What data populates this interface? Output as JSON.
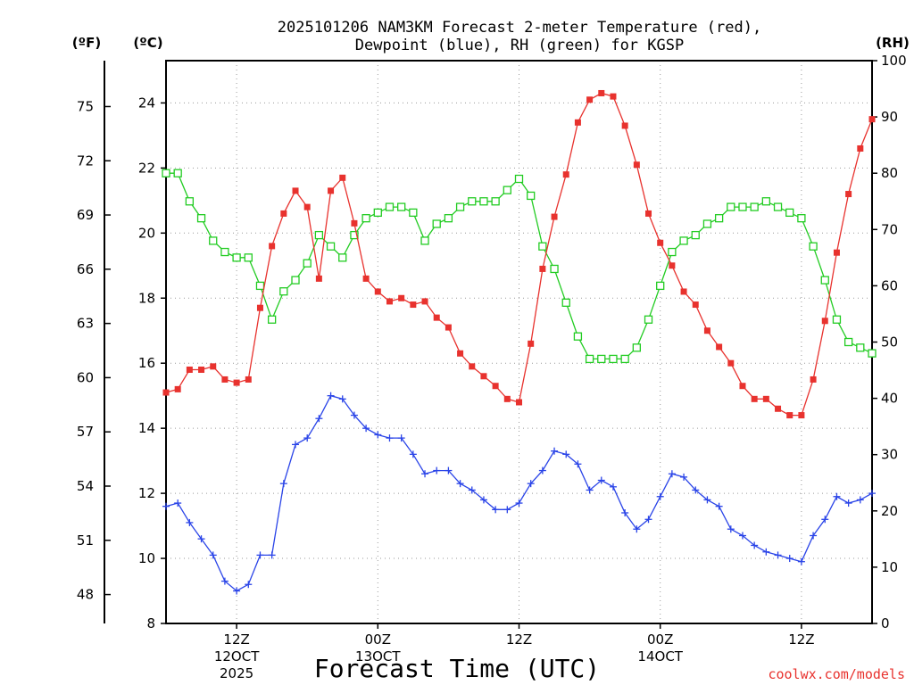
{
  "title": {
    "line1": "2025101206 NAM3KM Forecast 2-meter Temperature (red),",
    "line2": "Dewpoint (blue), RH (green) for KGSP"
  },
  "units": {
    "f": "(ºF)",
    "c": "(ºC)",
    "rh": "(RH)"
  },
  "xlabel": "Forecast Time (UTC)",
  "credit": "coolwx.com/models",
  "colors": {
    "temp": "#e8322e",
    "dew": "#2a44e8",
    "rh": "#22cc22",
    "credit": "#e8322e"
  },
  "chart_data": {
    "type": "line",
    "x_hours_from_start": [
      0,
      1,
      2,
      3,
      4,
      5,
      6,
      7,
      8,
      9,
      10,
      11,
      12,
      13,
      14,
      15,
      16,
      17,
      18,
      19,
      20,
      21,
      22,
      23,
      24,
      25,
      26,
      27,
      28,
      29,
      30,
      31,
      32,
      33,
      34,
      35,
      36,
      37,
      38,
      39,
      40,
      41,
      42,
      43,
      44,
      45,
      46,
      47,
      48,
      49,
      50,
      51,
      52,
      53,
      54,
      55,
      56,
      57,
      58,
      59,
      60
    ],
    "xlim_hours": [
      0,
      60
    ],
    "x_start_utc": "2025-10-12 06Z",
    "x_ticks": [
      {
        "hour": 6,
        "label": "12Z",
        "sub1": "12OCT",
        "sub2": "2025"
      },
      {
        "hour": 18,
        "label": "00Z",
        "sub1": "13OCT",
        "sub2": ""
      },
      {
        "hour": 30,
        "label": "12Z",
        "sub1": "",
        "sub2": ""
      },
      {
        "hour": 42,
        "label": "00Z",
        "sub1": "14OCT",
        "sub2": ""
      },
      {
        "hour": 54,
        "label": "12Z",
        "sub1": "",
        "sub2": ""
      }
    ],
    "left_axis_c": {
      "label": "(ºC)",
      "ylim": [
        8,
        25.3
      ],
      "ticks": [
        8,
        10,
        12,
        14,
        16,
        18,
        20,
        22,
        24
      ]
    },
    "far_left_axis_f": {
      "label": "(ºF)",
      "ticks": [
        48,
        51,
        54,
        57,
        60,
        63,
        66,
        69,
        72,
        75
      ]
    },
    "right_axis_rh": {
      "label": "(RH)",
      "ylim": [
        0,
        100
      ],
      "ticks": [
        0,
        10,
        20,
        30,
        40,
        50,
        60,
        70,
        80,
        90,
        100
      ]
    },
    "grid": true,
    "series": [
      {
        "name": "Temperature",
        "axis": "c",
        "marker": "square-filled",
        "color": "#e8322e",
        "values": [
          15.1,
          15.2,
          15.8,
          15.8,
          15.9,
          15.5,
          15.4,
          15.5,
          17.7,
          19.6,
          20.6,
          21.3,
          20.8,
          18.6,
          21.3,
          21.7,
          20.3,
          18.6,
          18.2,
          17.9,
          18.0,
          17.8,
          17.9,
          17.4,
          17.1,
          16.3,
          15.9,
          15.6,
          15.3,
          14.9,
          14.8,
          16.6,
          18.9,
          20.5,
          21.8,
          23.4,
          24.1,
          24.3,
          24.2,
          23.3,
          22.1,
          20.6,
          19.7,
          19.0,
          18.2,
          17.8,
          17.0,
          16.5,
          16.0,
          15.3,
          14.9,
          14.9,
          14.6,
          14.4,
          14.4,
          15.5,
          17.3,
          19.4,
          21.2,
          22.6,
          23.5
        ]
      },
      {
        "name": "Dewpoint",
        "axis": "c",
        "marker": "plus",
        "color": "#2a44e8",
        "values": [
          11.6,
          11.7,
          11.1,
          10.6,
          10.1,
          9.3,
          9.0,
          9.2,
          10.1,
          10.1,
          12.3,
          13.5,
          13.7,
          14.3,
          15.0,
          14.9,
          14.4,
          14.0,
          13.8,
          13.7,
          13.7,
          13.2,
          12.6,
          12.7,
          12.7,
          12.3,
          12.1,
          11.8,
          11.5,
          11.5,
          11.7,
          12.3,
          12.7,
          13.3,
          13.2,
          12.9,
          12.1,
          12.4,
          12.2,
          11.4,
          10.9,
          11.2,
          11.9,
          12.6,
          12.5,
          12.1,
          11.8,
          11.6,
          10.9,
          10.7,
          10.4,
          10.2,
          10.1,
          10.0,
          9.9,
          10.7,
          11.2,
          11.9,
          11.7,
          11.8,
          12.0
        ]
      },
      {
        "name": "RH",
        "axis": "rh",
        "marker": "square-open",
        "color": "#22cc22",
        "values": [
          80,
          80,
          75,
          72,
          68,
          66,
          65,
          65,
          60,
          54,
          59,
          61,
          64,
          69,
          67,
          65,
          69,
          72,
          73,
          74,
          74,
          73,
          68,
          71,
          72,
          74,
          75,
          75,
          75,
          77,
          79,
          76,
          67,
          63,
          57,
          51,
          47,
          47,
          47,
          47,
          49,
          54,
          60,
          66,
          68,
          69,
          71,
          72,
          74,
          74,
          74,
          75,
          74,
          73,
          72,
          67,
          61,
          54,
          50,
          49,
          48
        ]
      }
    ]
  }
}
